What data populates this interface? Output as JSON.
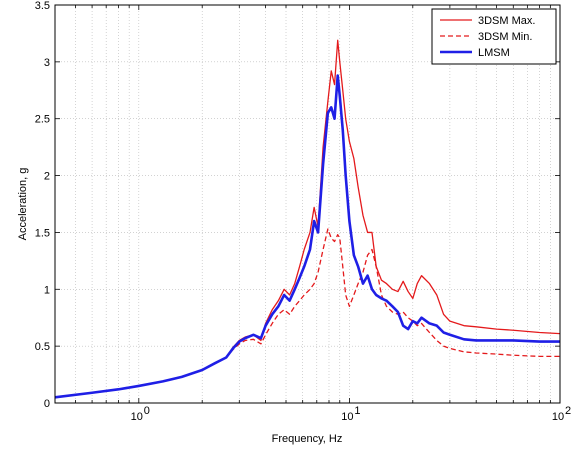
{
  "chart_data": {
    "type": "line",
    "xlabel": "Frequency, Hz",
    "ylabel": "Acceleration, g",
    "xscale": "log",
    "xlim": [
      0.4,
      100
    ],
    "ylim": [
      0,
      3.5
    ],
    "yticks": [
      0,
      0.5,
      1,
      1.5,
      2,
      2.5,
      3,
      3.5
    ],
    "ytick_labels": [
      "0",
      "0.5",
      "1",
      "1.5",
      "2",
      "2.5",
      "3",
      "3.5"
    ],
    "xticks": [
      1,
      10,
      100
    ],
    "xtick_labels": [
      {
        "base": "10",
        "exp": "0"
      },
      {
        "base": "10",
        "exp": "1"
      },
      {
        "base": "10",
        "exp": "2"
      }
    ],
    "grid": true,
    "legend_position": "top-right",
    "series": [
      {
        "name": "3DSM Max.",
        "color": "#e41a1c",
        "style": "solid",
        "width": 1.3,
        "points": [
          [
            0.4,
            0.05
          ],
          [
            0.6,
            0.09
          ],
          [
            0.8,
            0.12
          ],
          [
            1.0,
            0.15
          ],
          [
            1.3,
            0.19
          ],
          [
            1.6,
            0.23
          ],
          [
            2.0,
            0.29
          ],
          [
            2.3,
            0.35
          ],
          [
            2.6,
            0.4
          ],
          [
            2.8,
            0.49
          ],
          [
            3.0,
            0.55
          ],
          [
            3.2,
            0.58
          ],
          [
            3.5,
            0.6
          ],
          [
            3.8,
            0.55
          ],
          [
            4.0,
            0.7
          ],
          [
            4.3,
            0.82
          ],
          [
            4.6,
            0.9
          ],
          [
            4.9,
            1.0
          ],
          [
            5.2,
            0.95
          ],
          [
            5.5,
            1.05
          ],
          [
            5.8,
            1.2
          ],
          [
            6.1,
            1.35
          ],
          [
            6.5,
            1.5
          ],
          [
            6.8,
            1.72
          ],
          [
            7.1,
            1.55
          ],
          [
            7.5,
            2.25
          ],
          [
            7.9,
            2.65
          ],
          [
            8.2,
            2.92
          ],
          [
            8.5,
            2.8
          ],
          [
            8.8,
            3.19
          ],
          [
            9.0,
            3.0
          ],
          [
            9.3,
            2.75
          ],
          [
            9.6,
            2.5
          ],
          [
            10.0,
            2.3
          ],
          [
            10.5,
            2.15
          ],
          [
            11.0,
            1.9
          ],
          [
            11.6,
            1.65
          ],
          [
            12.2,
            1.5
          ],
          [
            12.8,
            1.5
          ],
          [
            13.4,
            1.2
          ],
          [
            14.2,
            1.08
          ],
          [
            15.0,
            1.05
          ],
          [
            16.0,
            1.0
          ],
          [
            17.0,
            0.98
          ],
          [
            18.0,
            1.07
          ],
          [
            19.0,
            0.98
          ],
          [
            20.0,
            0.92
          ],
          [
            21.0,
            1.05
          ],
          [
            22.0,
            1.12
          ],
          [
            24.0,
            1.05
          ],
          [
            26.0,
            0.95
          ],
          [
            28.0,
            0.78
          ],
          [
            30.0,
            0.72
          ],
          [
            35.0,
            0.68
          ],
          [
            40.0,
            0.67
          ],
          [
            50.0,
            0.65
          ],
          [
            60.0,
            0.64
          ],
          [
            80.0,
            0.62
          ],
          [
            100.0,
            0.61
          ]
        ]
      },
      {
        "name": "3DSM Min.",
        "color": "#e41a1c",
        "style": "dashed",
        "width": 1.3,
        "points": [
          [
            0.4,
            0.05
          ],
          [
            0.6,
            0.09
          ],
          [
            0.8,
            0.12
          ],
          [
            1.0,
            0.15
          ],
          [
            1.3,
            0.19
          ],
          [
            1.6,
            0.23
          ],
          [
            2.0,
            0.29
          ],
          [
            2.3,
            0.35
          ],
          [
            2.6,
            0.4
          ],
          [
            2.8,
            0.47
          ],
          [
            3.0,
            0.52
          ],
          [
            3.2,
            0.55
          ],
          [
            3.5,
            0.56
          ],
          [
            3.8,
            0.52
          ],
          [
            4.0,
            0.6
          ],
          [
            4.3,
            0.7
          ],
          [
            4.6,
            0.78
          ],
          [
            4.9,
            0.82
          ],
          [
            5.2,
            0.78
          ],
          [
            5.5,
            0.85
          ],
          [
            5.8,
            0.9
          ],
          [
            6.1,
            0.95
          ],
          [
            6.5,
            1.0
          ],
          [
            6.8,
            1.05
          ],
          [
            7.1,
            1.15
          ],
          [
            7.5,
            1.35
          ],
          [
            7.9,
            1.53
          ],
          [
            8.2,
            1.45
          ],
          [
            8.5,
            1.42
          ],
          [
            8.8,
            1.48
          ],
          [
            9.0,
            1.45
          ],
          [
            9.3,
            1.2
          ],
          [
            9.6,
            0.95
          ],
          [
            10.0,
            0.85
          ],
          [
            10.5,
            0.95
          ],
          [
            11.0,
            1.05
          ],
          [
            11.6,
            1.15
          ],
          [
            12.2,
            1.3
          ],
          [
            12.8,
            1.35
          ],
          [
            13.4,
            1.2
          ],
          [
            14.2,
            0.95
          ],
          [
            15.0,
            0.85
          ],
          [
            16.0,
            0.8
          ],
          [
            17.0,
            0.78
          ],
          [
            18.0,
            0.8
          ],
          [
            19.0,
            0.75
          ],
          [
            20.0,
            0.72
          ],
          [
            21.0,
            0.68
          ],
          [
            22.0,
            0.7
          ],
          [
            24.0,
            0.62
          ],
          [
            26.0,
            0.55
          ],
          [
            28.0,
            0.5
          ],
          [
            30.0,
            0.48
          ],
          [
            35.0,
            0.45
          ],
          [
            40.0,
            0.44
          ],
          [
            50.0,
            0.43
          ],
          [
            60.0,
            0.42
          ],
          [
            80.0,
            0.41
          ],
          [
            100.0,
            0.41
          ]
        ]
      },
      {
        "name": "LMSM",
        "color": "#1f1fe6",
        "style": "solid",
        "width": 2.6,
        "points": [
          [
            0.4,
            0.05
          ],
          [
            0.6,
            0.09
          ],
          [
            0.8,
            0.12
          ],
          [
            1.0,
            0.15
          ],
          [
            1.3,
            0.19
          ],
          [
            1.6,
            0.23
          ],
          [
            2.0,
            0.29
          ],
          [
            2.3,
            0.35
          ],
          [
            2.6,
            0.4
          ],
          [
            2.8,
            0.48
          ],
          [
            3.0,
            0.54
          ],
          [
            3.2,
            0.57
          ],
          [
            3.5,
            0.6
          ],
          [
            3.8,
            0.57
          ],
          [
            4.0,
            0.68
          ],
          [
            4.3,
            0.78
          ],
          [
            4.6,
            0.85
          ],
          [
            4.9,
            0.95
          ],
          [
            5.2,
            0.9
          ],
          [
            5.5,
            1.0
          ],
          [
            5.8,
            1.1
          ],
          [
            6.1,
            1.2
          ],
          [
            6.5,
            1.35
          ],
          [
            6.8,
            1.6
          ],
          [
            7.1,
            1.5
          ],
          [
            7.5,
            2.1
          ],
          [
            7.9,
            2.55
          ],
          [
            8.2,
            2.6
          ],
          [
            8.5,
            2.5
          ],
          [
            8.8,
            2.88
          ],
          [
            9.0,
            2.7
          ],
          [
            9.3,
            2.4
          ],
          [
            9.6,
            2.0
          ],
          [
            10.0,
            1.6
          ],
          [
            10.5,
            1.3
          ],
          [
            11.0,
            1.2
          ],
          [
            11.6,
            1.05
          ],
          [
            12.2,
            1.12
          ],
          [
            12.8,
            1.0
          ],
          [
            13.4,
            0.95
          ],
          [
            14.2,
            0.92
          ],
          [
            15.0,
            0.9
          ],
          [
            16.0,
            0.85
          ],
          [
            17.0,
            0.8
          ],
          [
            18.0,
            0.68
          ],
          [
            19.0,
            0.65
          ],
          [
            20.0,
            0.72
          ],
          [
            21.0,
            0.7
          ],
          [
            22.0,
            0.75
          ],
          [
            24.0,
            0.7
          ],
          [
            26.0,
            0.68
          ],
          [
            28.0,
            0.62
          ],
          [
            30.0,
            0.6
          ],
          [
            35.0,
            0.56
          ],
          [
            40.0,
            0.55
          ],
          [
            50.0,
            0.55
          ],
          [
            60.0,
            0.55
          ],
          [
            80.0,
            0.54
          ],
          [
            100.0,
            0.54
          ]
        ]
      }
    ]
  }
}
